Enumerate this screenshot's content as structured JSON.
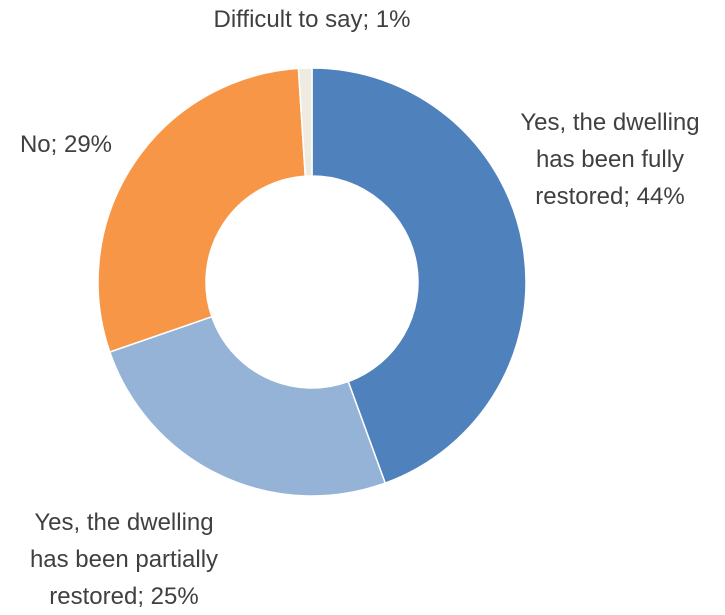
{
  "chart_data": {
    "type": "pie",
    "variant": "donut",
    "title": "",
    "slices": [
      {
        "name": "Yes, the dwelling has been fully restored",
        "value": 44,
        "color": "#4F81BD",
        "label_lines": [
          "Yes, the dwelling",
          "has been fully",
          "restored; 44%"
        ]
      },
      {
        "name": "Yes, the dwelling has been partially restored",
        "value": 25,
        "color": "#95B3D7",
        "label_lines": [
          "Yes, the dwelling",
          "has been partially",
          "restored; 25%"
        ]
      },
      {
        "name": "No",
        "value": 29,
        "color": "#F79646",
        "label_lines": [
          "No; 29%"
        ]
      },
      {
        "name": "Difficult to say",
        "value": 1,
        "color": "#EEECE1",
        "label_lines": [
          "Difficult to say; 1%"
        ]
      }
    ],
    "legend": "none"
  }
}
